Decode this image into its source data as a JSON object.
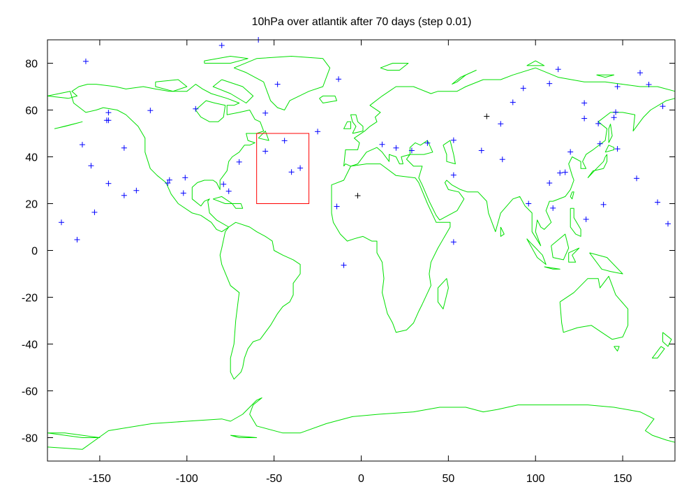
{
  "chart_data": {
    "type": "scatter",
    "title": "10hPa over atlantik after 70 days (step 0.01)",
    "xlabel": "",
    "ylabel": "",
    "xlim": [
      -180,
      180
    ],
    "ylim": [
      -90,
      90
    ],
    "x_ticks": [
      -150,
      -100,
      -50,
      0,
      50,
      100,
      150
    ],
    "y_ticks": [
      80,
      60,
      40,
      20,
      0,
      -20,
      -40,
      -60,
      -80
    ],
    "grid": false,
    "colors": {
      "coastline": "#00e000",
      "region": "#ff0000",
      "particles": "#0000ff",
      "highlight": "#000000",
      "frame": "#000000"
    },
    "region_box": {
      "lon": [
        -60,
        -30
      ],
      "lat": [
        20,
        50
      ]
    },
    "series": [
      {
        "marker": "+",
        "color": "#0000ff",
        "points": [
          [
            -172,
            12
          ],
          [
            -163,
            4.6
          ],
          [
            -158,
            80.8
          ],
          [
            -160,
            45.2
          ],
          [
            -155,
            36.2
          ],
          [
            -153,
            16.3
          ],
          [
            -146,
            55.6
          ],
          [
            -145,
            58.9
          ],
          [
            -145,
            55.6
          ],
          [
            -145,
            28.6
          ],
          [
            -136,
            43.8
          ],
          [
            -136,
            23.5
          ],
          [
            -129,
            25.6
          ],
          [
            -121,
            59.8
          ],
          [
            -110,
            30.1
          ],
          [
            -111,
            28.8
          ],
          [
            -102,
            24.5
          ],
          [
            -101,
            31.1
          ],
          [
            -95,
            60.5
          ],
          [
            -80,
            87.6
          ],
          [
            -79,
            28.3
          ],
          [
            -76,
            25.3
          ],
          [
            -70,
            37.8
          ],
          [
            -59,
            90
          ],
          [
            -55,
            42.4
          ],
          [
            -55,
            58.7
          ],
          [
            -48,
            71
          ],
          [
            -44,
            46.9
          ],
          [
            -40,
            33.5
          ],
          [
            -35,
            35.2
          ],
          [
            -25,
            50.8
          ],
          [
            -13,
            73.2
          ],
          [
            -14,
            18.8
          ],
          [
            -10,
            -6.3
          ],
          [
            12,
            45.3
          ],
          [
            20,
            43.8
          ],
          [
            29,
            42.7
          ],
          [
            38,
            45.9
          ],
          [
            53,
            47.1
          ],
          [
            53,
            32.2
          ],
          [
            53,
            3.6
          ],
          [
            69,
            42.7
          ],
          [
            80,
            54.1
          ],
          [
            81,
            38.9
          ],
          [
            87,
            63.3
          ],
          [
            93,
            69.3
          ],
          [
            96,
            20
          ],
          [
            108,
            71.3
          ],
          [
            108,
            28.8
          ],
          [
            110,
            18.1
          ],
          [
            113,
            77.4
          ],
          [
            114,
            33.1
          ],
          [
            117,
            33.4
          ],
          [
            120,
            42.1
          ],
          [
            128,
            63
          ],
          [
            128,
            56.4
          ],
          [
            129,
            13.3
          ],
          [
            136,
            54.2
          ],
          [
            137,
            45.6
          ],
          [
            139,
            19.6
          ],
          [
            145,
            56.8
          ],
          [
            146,
            59.1
          ],
          [
            147,
            43.4
          ],
          [
            147,
            70
          ],
          [
            158,
            30.8
          ],
          [
            160,
            75.9
          ],
          [
            165,
            70.9
          ],
          [
            170,
            20.6
          ],
          [
            173,
            61.6
          ],
          [
            176,
            11.4
          ]
        ]
      },
      {
        "marker": "+",
        "color": "#000000",
        "points": [
          [
            -2,
            23.4
          ],
          [
            72,
            57.3
          ]
        ]
      }
    ]
  }
}
